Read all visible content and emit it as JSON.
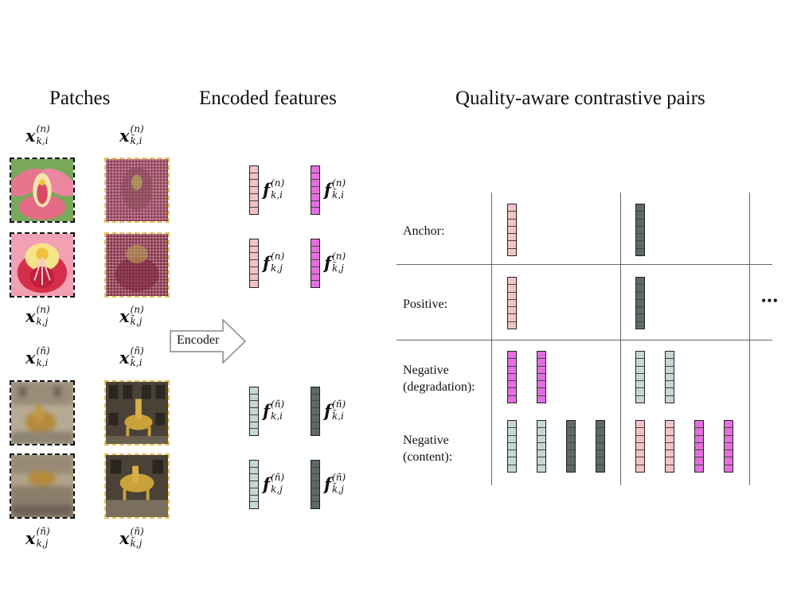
{
  "titles": {
    "patches": "Patches",
    "features": "Encoded features",
    "pairs": "Quality-aware contrastive pairs"
  },
  "patch_labels": {
    "x_ki_n": {
      "base": "x",
      "sup": "(n)",
      "sub": "k,i"
    },
    "x_tki_n": {
      "base": "x",
      "sup": "(n)",
      "sub": "k̃,i"
    },
    "x_kj_n": {
      "base": "x",
      "sup": "(n)",
      "sub": "k,j"
    },
    "x_tkj_n": {
      "base": "x",
      "sup": "(n)",
      "sub": "k̃,j"
    },
    "x_ki_tn": {
      "base": "x",
      "sup": "(ñ)",
      "sub": "k,i"
    },
    "x_tki_tn": {
      "base": "x",
      "sup": "(ñ)",
      "sub": "k̃,i"
    },
    "x_kj_tn": {
      "base": "x",
      "sup": "(ñ)",
      "sub": "k,j"
    },
    "x_tkj_tn": {
      "base": "x",
      "sup": "(ñ)",
      "sub": "k̃,j"
    }
  },
  "feature_labels": {
    "f_ki_n": {
      "base": "f",
      "sup": "(n)",
      "sub": "k,i"
    },
    "f_tki_n": {
      "base": "f",
      "sup": "(n)",
      "sub": "k̃,i"
    },
    "f_kj_n": {
      "base": "f",
      "sup": "(n)",
      "sub": "k,j"
    },
    "f_tkj_n": {
      "base": "f",
      "sup": "(n)",
      "sub": "k̃,j"
    },
    "f_ki_tn": {
      "base": "f",
      "sup": "(ñ)",
      "sub": "k,i"
    },
    "f_tki_tn": {
      "base": "f",
      "sup": "(ñ)",
      "sub": "k̃,i"
    },
    "f_kj_tn": {
      "base": "f",
      "sup": "(ñ)",
      "sub": "k,j"
    },
    "f_tkj_tn": {
      "base": "f",
      "sup": "(ñ)",
      "sub": "k̃,j"
    }
  },
  "encoder": {
    "label": "Encoder"
  },
  "rows": {
    "anchor": "Anchor:",
    "positive": "Positive:",
    "neg_deg_1": "Negative",
    "neg_deg_2": "(degradation):",
    "neg_con_1": "Negative",
    "neg_con_2": "(content):"
  },
  "ellipsis": "•••",
  "colors": {
    "pink": "#f4c2c2",
    "magenta": "#e46ee0",
    "lightgray": "#c5d8d4",
    "darkgray": "#5d6b63"
  }
}
